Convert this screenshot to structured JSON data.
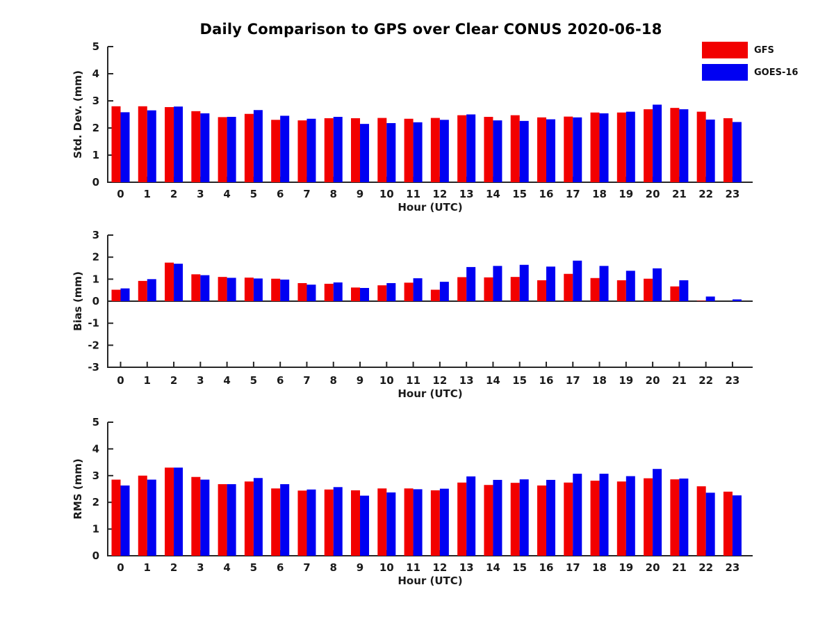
{
  "title": "Daily Comparison to GPS over Clear CONUS 2020-06-18",
  "legend": {
    "items": [
      {
        "label": "GFS",
        "color": "#f20000"
      },
      {
        "label": "GOES-16",
        "color": "#0000f2"
      }
    ]
  },
  "chart_data": [
    {
      "type": "bar",
      "name": "std-dev",
      "ylabel": "Std. Dev. (mm)",
      "xlabel": "Hour (UTC)",
      "ylim": [
        0,
        5
      ],
      "yticks": [
        0,
        1,
        2,
        3,
        4,
        5
      ],
      "grid": false,
      "legend_position": "top-right",
      "categories": [
        "0",
        "1",
        "2",
        "3",
        "4",
        "5",
        "6",
        "7",
        "8",
        "9",
        "10",
        "11",
        "12",
        "13",
        "14",
        "15",
        "16",
        "17",
        "18",
        "19",
        "20",
        "21",
        "22",
        "23"
      ],
      "series": [
        {
          "name": "GFS",
          "color": "#f20000",
          "values": [
            2.8,
            2.8,
            2.77,
            2.62,
            2.4,
            2.52,
            2.3,
            2.28,
            2.36,
            2.36,
            2.37,
            2.34,
            2.37,
            2.47,
            2.41,
            2.47,
            2.39,
            2.42,
            2.57,
            2.57,
            2.69,
            2.74,
            2.6,
            2.36
          ]
        },
        {
          "name": "GOES-16",
          "color": "#0000f2",
          "values": [
            2.58,
            2.65,
            2.79,
            2.54,
            2.41,
            2.66,
            2.45,
            2.34,
            2.41,
            2.15,
            2.18,
            2.21,
            2.3,
            2.5,
            2.28,
            2.26,
            2.32,
            2.39,
            2.54,
            2.6,
            2.86,
            2.69,
            2.31,
            2.22
          ]
        }
      ]
    },
    {
      "type": "bar",
      "name": "bias",
      "ylabel": "Bias (mm)",
      "xlabel": "Hour (UTC)",
      "ylim": [
        -3,
        3
      ],
      "yticks": [
        -3,
        -2,
        -1,
        0,
        1,
        2,
        3
      ],
      "grid": false,
      "categories": [
        "0",
        "1",
        "2",
        "3",
        "4",
        "5",
        "6",
        "7",
        "8",
        "9",
        "10",
        "11",
        "12",
        "13",
        "14",
        "15",
        "16",
        "17",
        "18",
        "19",
        "20",
        "21",
        "22",
        "23"
      ],
      "series": [
        {
          "name": "GFS",
          "color": "#f20000",
          "values": [
            0.52,
            0.92,
            1.75,
            1.22,
            1.1,
            1.07,
            1.02,
            0.82,
            0.79,
            0.62,
            0.72,
            0.84,
            0.52,
            1.09,
            1.08,
            1.1,
            0.95,
            1.24,
            1.05,
            0.95,
            1.02,
            0.67,
            0.02,
            0.0
          ]
        },
        {
          "name": "GOES-16",
          "color": "#0000f2",
          "values": [
            0.58,
            1.0,
            1.7,
            1.18,
            1.06,
            1.03,
            0.98,
            0.75,
            0.85,
            0.6,
            0.82,
            1.04,
            0.88,
            1.55,
            1.6,
            1.65,
            1.57,
            1.84,
            1.6,
            1.38,
            1.49,
            0.95,
            0.21,
            0.08
          ]
        }
      ]
    },
    {
      "type": "bar",
      "name": "rms",
      "ylabel": "RMS (mm)",
      "xlabel": "Hour (UTC)",
      "ylim": [
        0,
        5
      ],
      "yticks": [
        0,
        1,
        2,
        3,
        4,
        5
      ],
      "grid": false,
      "categories": [
        "0",
        "1",
        "2",
        "3",
        "4",
        "5",
        "6",
        "7",
        "8",
        "9",
        "10",
        "11",
        "12",
        "13",
        "14",
        "15",
        "16",
        "17",
        "18",
        "19",
        "20",
        "21",
        "22",
        "23"
      ],
      "series": [
        {
          "name": "GFS",
          "color": "#f20000",
          "values": [
            2.85,
            3.0,
            3.3,
            2.95,
            2.68,
            2.78,
            2.52,
            2.44,
            2.48,
            2.45,
            2.52,
            2.52,
            2.45,
            2.74,
            2.65,
            2.73,
            2.63,
            2.74,
            2.81,
            2.78,
            2.9,
            2.86,
            2.6,
            2.4
          ]
        },
        {
          "name": "GOES-16",
          "color": "#0000f2",
          "values": [
            2.63,
            2.85,
            3.3,
            2.85,
            2.68,
            2.91,
            2.68,
            2.48,
            2.57,
            2.25,
            2.37,
            2.49,
            2.51,
            2.97,
            2.84,
            2.86,
            2.84,
            3.07,
            3.07,
            2.98,
            3.25,
            2.89,
            2.36,
            2.26
          ]
        }
      ]
    }
  ]
}
